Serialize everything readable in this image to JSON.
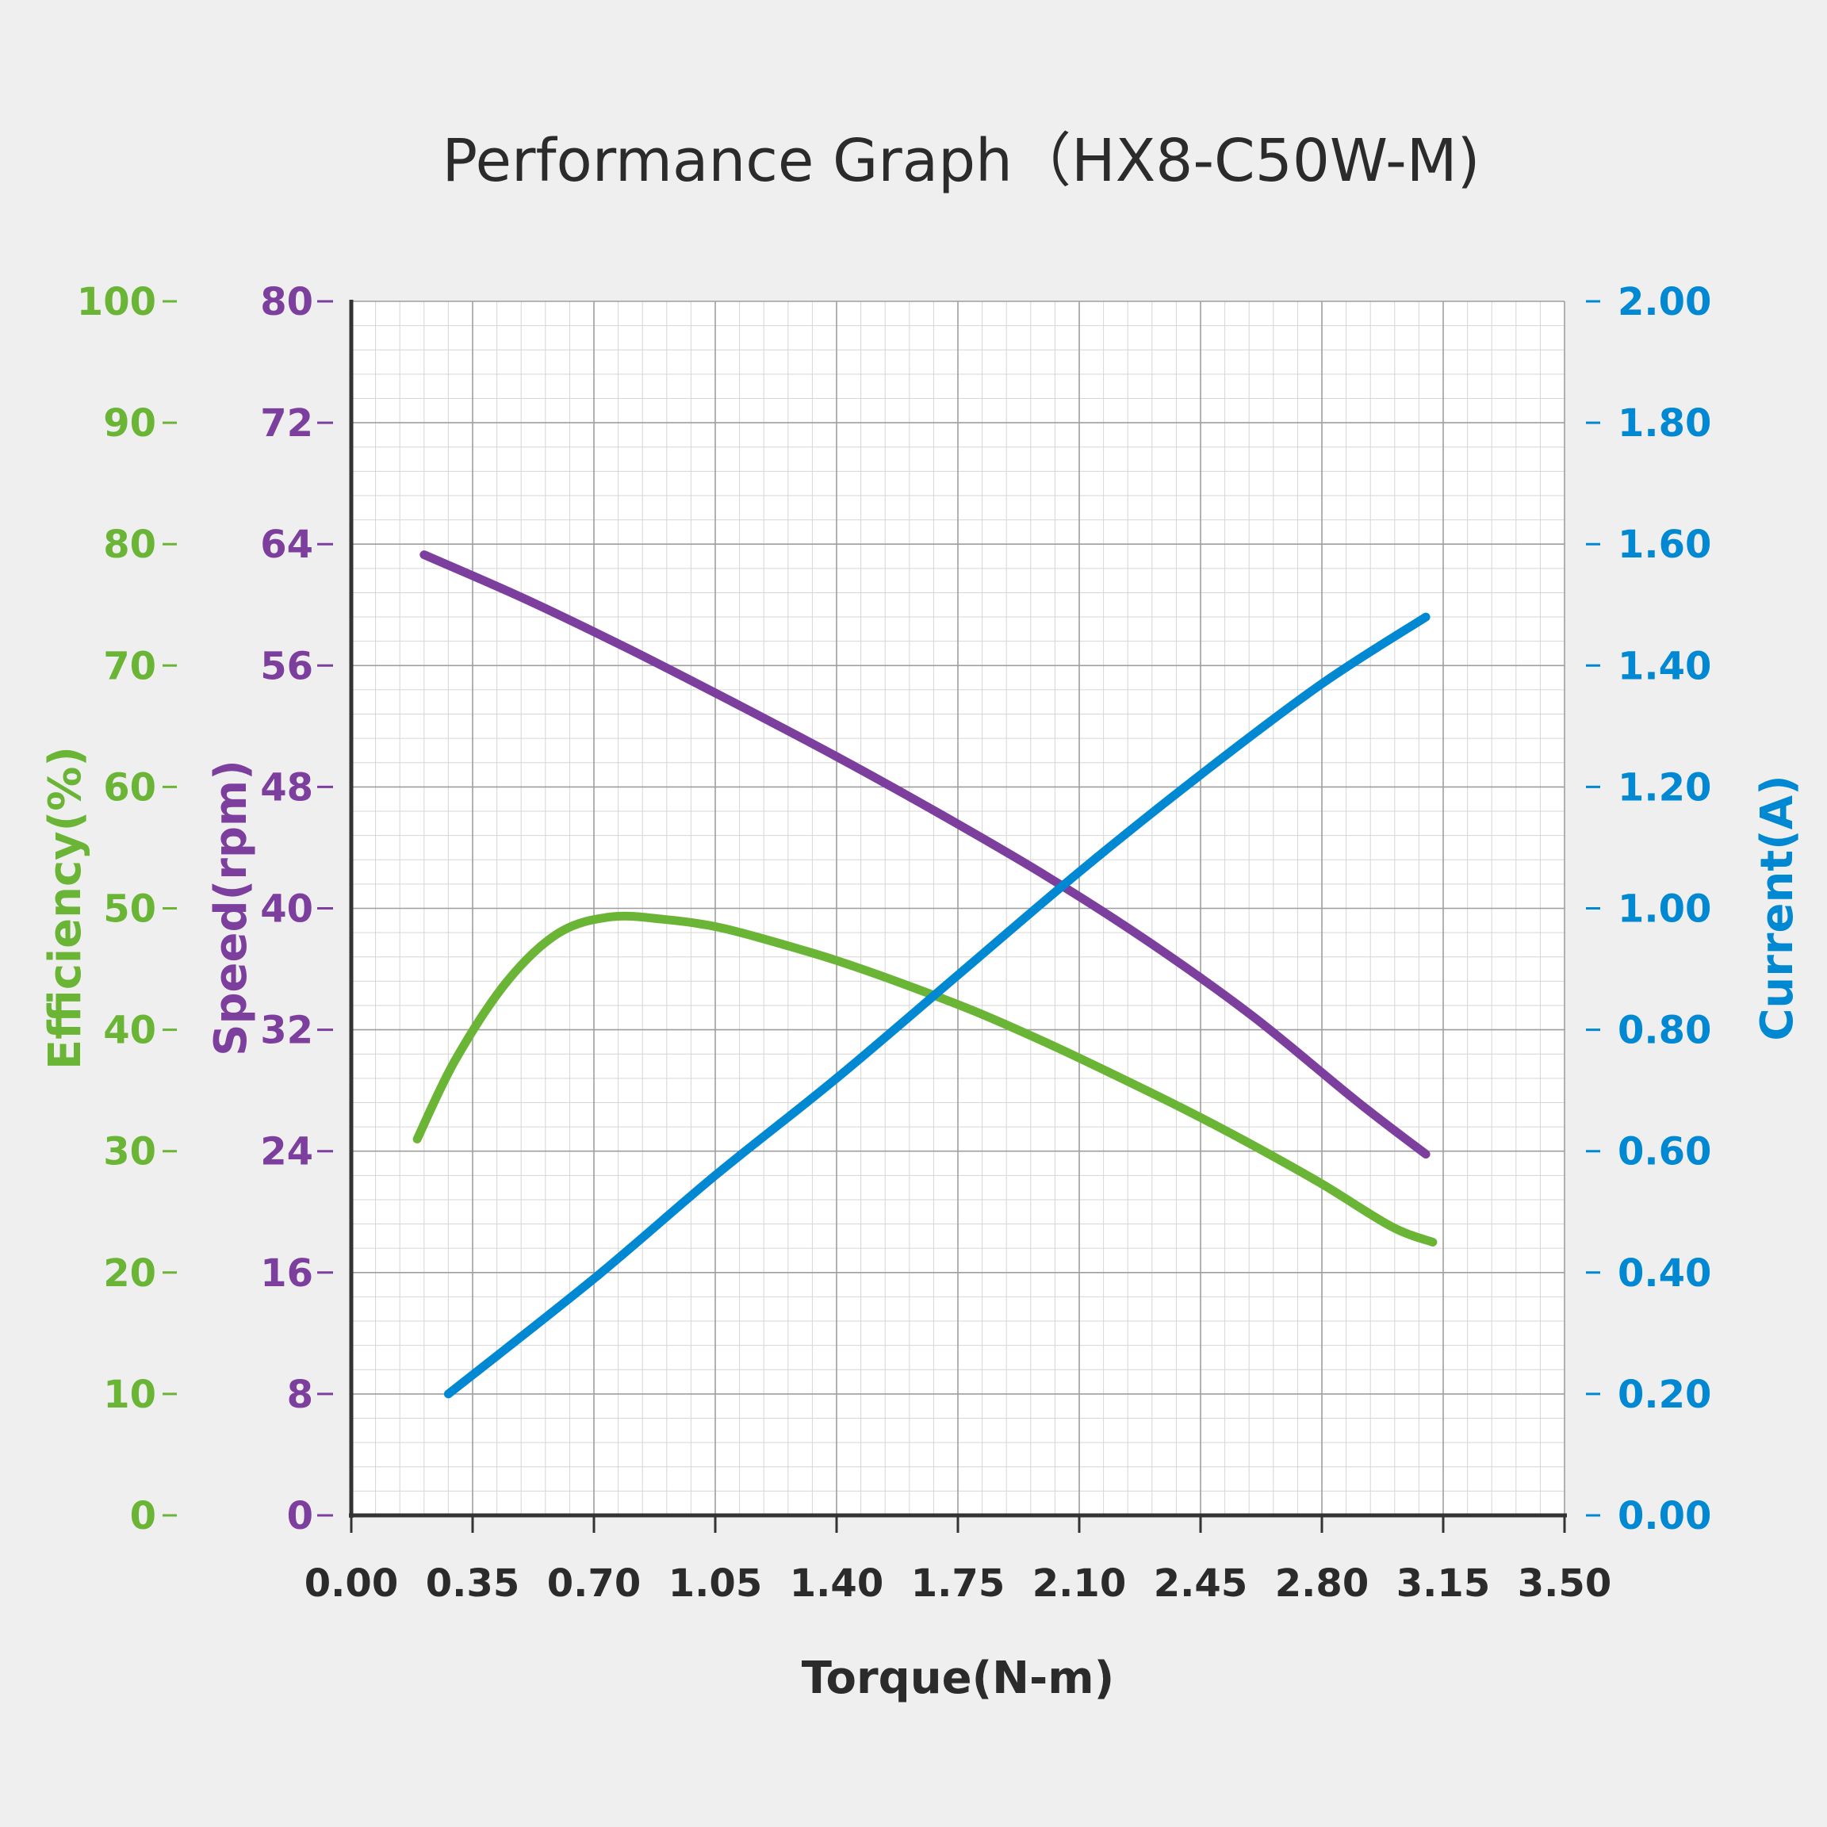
{
  "colors": {
    "background": "#efefef",
    "plot_bg": "#ffffff",
    "efficiency": "#6ab536",
    "speed": "#7d3f9e",
    "current": "#0088d2",
    "axis": "#333333",
    "grid_major": "#9e9e9e",
    "grid_minor": "#d6d6d6"
  },
  "chart_data": {
    "type": "line",
    "title": "Performance Graph（HX8-C50W-M)",
    "xlabel": "Torque(N-m)",
    "x_ticks": [
      "0.00",
      "0.35",
      "0.70",
      "1.05",
      "1.40",
      "1.75",
      "2.10",
      "2.45",
      "2.80",
      "3.15",
      "3.50"
    ],
    "xlim": [
      0,
      3.5
    ],
    "grid": true,
    "axes": {
      "efficiency": {
        "label": "Efficiency(%)",
        "side": "left-outer",
        "ylim": [
          0,
          100
        ],
        "ticks": [
          "0",
          "10",
          "20",
          "30",
          "40",
          "50",
          "60",
          "70",
          "80",
          "90",
          "100"
        ]
      },
      "speed": {
        "label": "Speed(rpm)",
        "side": "left-inner",
        "ylim": [
          0,
          80
        ],
        "ticks": [
          "0",
          "8",
          "16",
          "24",
          "32",
          "40",
          "48",
          "56",
          "64",
          "72",
          "80"
        ]
      },
      "current": {
        "label": "Current(A)",
        "side": "right",
        "ylim": [
          0,
          2.0
        ],
        "ticks": [
          "0.00",
          "0.20",
          "0.40",
          "0.60",
          "0.80",
          "1.00",
          "1.20",
          "1.40",
          "1.60",
          "1.80",
          "2.00"
        ]
      }
    },
    "series": [
      {
        "axis": "speed",
        "color_key": "speed",
        "x": [
          0.21,
          0.5,
          0.8,
          1.1,
          1.4,
          1.7,
          2.0,
          2.3,
          2.6,
          2.9,
          3.1
        ],
        "y": [
          63.3,
          60.4,
          57.1,
          53.6,
          50.0,
          46.2,
          42.2,
          37.8,
          32.9,
          27.3,
          23.8
        ]
      },
      {
        "axis": "efficiency",
        "color_key": "efficiency",
        "x": [
          0.19,
          0.3,
          0.45,
          0.6,
          0.75,
          0.9,
          1.05,
          1.2,
          1.4,
          1.6,
          1.8,
          2.0,
          2.2,
          2.4,
          2.6,
          2.8,
          3.0,
          3.12
        ],
        "y": [
          31,
          37.5,
          44,
          48,
          49.3,
          49.1,
          48.5,
          47.4,
          45.7,
          43.7,
          41.5,
          39,
          36.3,
          33.5,
          30.5,
          27.3,
          23.8,
          22.5
        ]
      },
      {
        "axis": "current",
        "color_key": "current",
        "x": [
          0.28,
          0.7,
          1.05,
          1.4,
          1.75,
          2.1,
          2.45,
          2.8,
          3.1
        ],
        "y": [
          0.2,
          0.39,
          0.56,
          0.72,
          0.89,
          1.06,
          1.22,
          1.37,
          1.48
        ]
      }
    ]
  }
}
